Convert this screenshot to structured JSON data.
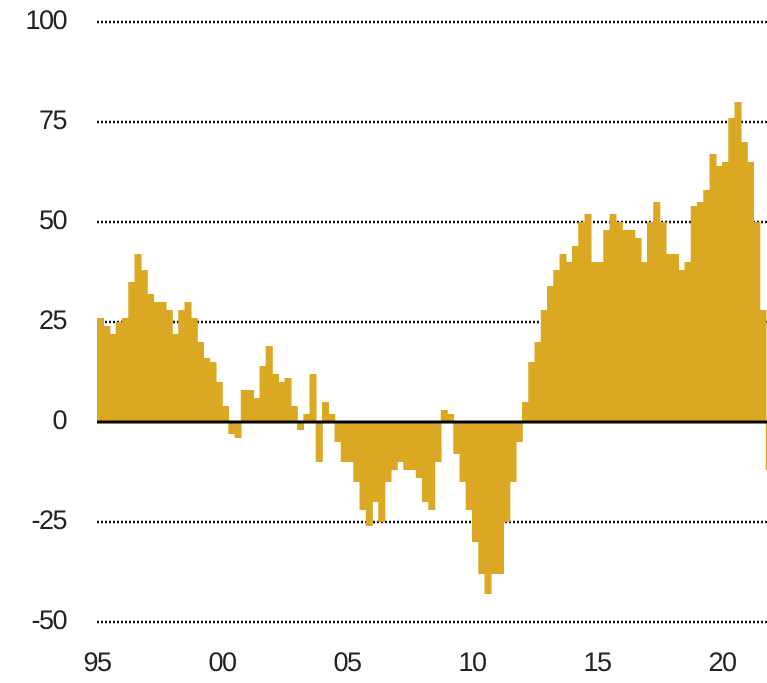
{
  "chart_data": {
    "type": "bar",
    "color": "#dba823",
    "grid": true,
    "x": [
      1995,
      1995.25,
      1995.5,
      1995.75,
      1996,
      1996.25,
      1996.5,
      1996.75,
      1997,
      1997.25,
      1997.5,
      1997.75,
      1998,
      1998.25,
      1998.5,
      1998.75,
      1999,
      1999.25,
      1999.5,
      1999.75,
      2000,
      2000.25,
      2000.5,
      2000.75,
      2001,
      2001.25,
      2001.5,
      2001.75,
      2002,
      2002.25,
      2002.5,
      2002.75,
      2003,
      2003.25,
      2003.5,
      2003.75,
      2004,
      2004.25,
      2004.5,
      2004.75,
      2005,
      2005.25,
      2005.5,
      2005.75,
      2006,
      2006.25,
      2006.5,
      2006.75,
      2007,
      2007.25,
      2007.5,
      2007.75,
      2008,
      2008.25,
      2008.5,
      2008.75,
      2009,
      2009.25,
      2009.5,
      2009.75,
      2010,
      2010.25,
      2010.5,
      2010.75,
      2011,
      2011.25,
      2011.5,
      2011.75,
      2012,
      2012.25,
      2012.5,
      2012.75,
      2013,
      2013.25,
      2013.5,
      2013.75,
      2014,
      2014.25,
      2014.5,
      2014.75,
      2015,
      2015.25,
      2015.5,
      2015.75,
      2016,
      2016.25,
      2016.5,
      2016.75,
      2017,
      2017.25,
      2017.5,
      2017.75,
      2018,
      2018.25,
      2018.5,
      2018.75,
      2019,
      2019.25,
      2019.5,
      2019.75,
      2020,
      2020.25,
      2020.5,
      2020.75,
      2021,
      2021.25,
      2021.5,
      2021.75
    ],
    "values": [
      26,
      24,
      22,
      25,
      26,
      35,
      42,
      38,
      32,
      30,
      30,
      28,
      22,
      28,
      30,
      26,
      20,
      16,
      15,
      10,
      4,
      -3,
      -4,
      8,
      8,
      6,
      14,
      19,
      12,
      10,
      11,
      4,
      -2,
      2,
      12,
      -10,
      5,
      2,
      -5,
      -10,
      -10,
      -15,
      -22,
      -26,
      -20,
      -25,
      -15,
      -12,
      -10,
      -12,
      -12,
      -14,
      -20,
      -22,
      -10,
      3,
      2,
      -8,
      -15,
      -22,
      -30,
      -38,
      -43,
      -38,
      -38,
      -25,
      -15,
      -5,
      5,
      15,
      20,
      28,
      34,
      38,
      42,
      40,
      44,
      50,
      52,
      40,
      40,
      48,
      52,
      50,
      48,
      48,
      46,
      40,
      50,
      55,
      50,
      42,
      42,
      38,
      40,
      54,
      55,
      58,
      67,
      64,
      65,
      76,
      80,
      70,
      65,
      50,
      28,
      -12
    ],
    "xlim": [
      1995,
      2021.8
    ],
    "xticks": [
      {
        "value": 1995,
        "label": "95"
      },
      {
        "value": 2000,
        "label": "00"
      },
      {
        "value": 2005,
        "label": "05"
      },
      {
        "value": 2010,
        "label": "10"
      },
      {
        "value": 2015,
        "label": "15"
      },
      {
        "value": 2020,
        "label": "20"
      }
    ],
    "ylim": [
      -50,
      100
    ],
    "yticks": [
      -50,
      -25,
      0,
      25,
      50,
      75,
      100
    ]
  }
}
